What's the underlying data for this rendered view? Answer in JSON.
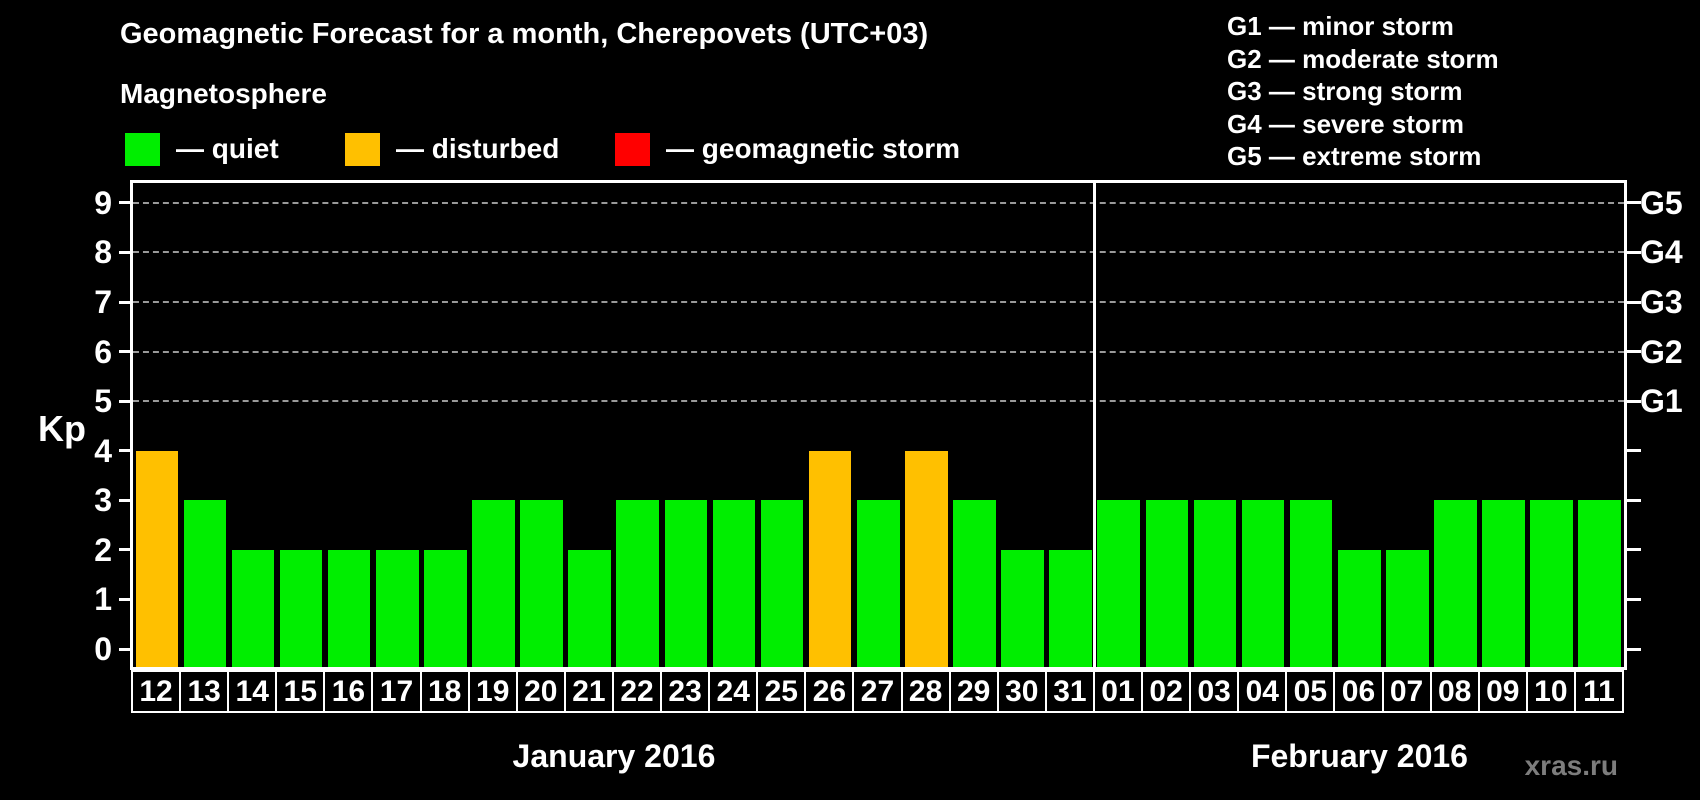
{
  "header": {
    "title": "Geomagnetic Forecast for a month, Cherepovets (UTC+03)",
    "subtitle": "Magnetosphere"
  },
  "legend": {
    "items": [
      {
        "label": "— quiet",
        "color": "#00ee00"
      },
      {
        "label": "— disturbed",
        "color": "#ffc000"
      },
      {
        "label": "— geomagnetic storm",
        "color": "#ff0000"
      }
    ]
  },
  "storm_legend": {
    "items": [
      "G1 — minor storm",
      "G2 — moderate storm",
      "G3 — strong storm",
      "G4 — severe storm",
      "G5 — extreme storm"
    ]
  },
  "watermark": "xras.ru",
  "chart_data": {
    "type": "bar",
    "ylabel": "Kp",
    "ylim": [
      0,
      9.4
    ],
    "yticks": [
      0,
      1,
      2,
      3,
      4,
      5,
      6,
      7,
      8,
      9
    ],
    "grid": true,
    "grid_levels": [
      5,
      6,
      7,
      8,
      9
    ],
    "legend_position": "top",
    "right_axis": [
      {
        "label": "G1",
        "kp": 5
      },
      {
        "label": "G2",
        "kp": 6
      },
      {
        "label": "G3",
        "kp": 7
      },
      {
        "label": "G4",
        "kp": 8
      },
      {
        "label": "G5",
        "kp": 9
      }
    ],
    "status_colors": {
      "quiet": "#00ee00",
      "disturbed": "#ffc000",
      "storm": "#ff0000"
    },
    "months": [
      {
        "label": "January 2016",
        "days": [
          {
            "day": "12",
            "kp": 4,
            "status": "disturbed"
          },
          {
            "day": "13",
            "kp": 3,
            "status": "quiet"
          },
          {
            "day": "14",
            "kp": 2,
            "status": "quiet"
          },
          {
            "day": "15",
            "kp": 2,
            "status": "quiet"
          },
          {
            "day": "16",
            "kp": 2,
            "status": "quiet"
          },
          {
            "day": "17",
            "kp": 2,
            "status": "quiet"
          },
          {
            "day": "18",
            "kp": 2,
            "status": "quiet"
          },
          {
            "day": "19",
            "kp": 3,
            "status": "quiet"
          },
          {
            "day": "20",
            "kp": 3,
            "status": "quiet"
          },
          {
            "day": "21",
            "kp": 2,
            "status": "quiet"
          },
          {
            "day": "22",
            "kp": 3,
            "status": "quiet"
          },
          {
            "day": "23",
            "kp": 3,
            "status": "quiet"
          },
          {
            "day": "24",
            "kp": 3,
            "status": "quiet"
          },
          {
            "day": "25",
            "kp": 3,
            "status": "quiet"
          },
          {
            "day": "26",
            "kp": 4,
            "status": "disturbed"
          },
          {
            "day": "27",
            "kp": 3,
            "status": "quiet"
          },
          {
            "day": "28",
            "kp": 4,
            "status": "disturbed"
          },
          {
            "day": "29",
            "kp": 3,
            "status": "quiet"
          },
          {
            "day": "30",
            "kp": 2,
            "status": "quiet"
          },
          {
            "day": "31",
            "kp": 2,
            "status": "quiet"
          }
        ]
      },
      {
        "label": "February 2016",
        "days": [
          {
            "day": "01",
            "kp": 3,
            "status": "quiet"
          },
          {
            "day": "02",
            "kp": 3,
            "status": "quiet"
          },
          {
            "day": "03",
            "kp": 3,
            "status": "quiet"
          },
          {
            "day": "04",
            "kp": 3,
            "status": "quiet"
          },
          {
            "day": "05",
            "kp": 3,
            "status": "quiet"
          },
          {
            "day": "06",
            "kp": 2,
            "status": "quiet"
          },
          {
            "day": "07",
            "kp": 2,
            "status": "quiet"
          },
          {
            "day": "08",
            "kp": 3,
            "status": "quiet"
          },
          {
            "day": "09",
            "kp": 3,
            "status": "quiet"
          },
          {
            "day": "10",
            "kp": 3,
            "status": "quiet"
          },
          {
            "day": "11",
            "kp": 3,
            "status": "quiet"
          }
        ]
      }
    ]
  }
}
